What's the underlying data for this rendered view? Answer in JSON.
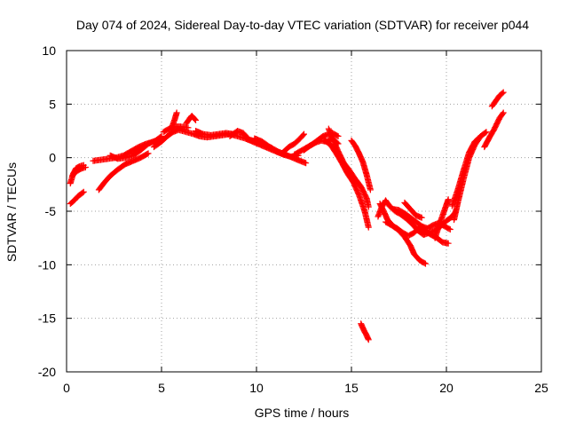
{
  "chart_data": {
    "type": "scatter",
    "title": "Day 074 of 2024, Sidereal Day-to-day VTEC variation (SDTVAR) for receiver p044",
    "xlabel": "GPS time / hours",
    "ylabel": "SDTVAR / TECUs",
    "xlim": [
      0,
      25
    ],
    "ylim": [
      -20,
      10
    ],
    "xticks": [
      0,
      5,
      10,
      15,
      20,
      25
    ],
    "xtick_labels": [
      "0",
      "5",
      "10",
      "15",
      "20",
      "25"
    ],
    "yticks": [
      -20,
      -15,
      -10,
      -5,
      0,
      5,
      10
    ],
    "ytick_labels": [
      "-20",
      "-15",
      "-10",
      "-5",
      "0",
      "5",
      "10"
    ],
    "grid": true,
    "marker": "+",
    "series": [
      {
        "name": "SDTVAR",
        "color": "#ff0000",
        "tracks": [
          [
            [
              0.2,
              -4.3
            ],
            [
              0.4,
              -4.0
            ],
            [
              0.6,
              -3.6
            ],
            [
              0.9,
              -3.2
            ]
          ],
          [
            [
              0.2,
              -2.4
            ],
            [
              0.35,
              -1.5
            ],
            [
              0.5,
              -1.0
            ],
            [
              0.7,
              -0.8
            ],
            [
              0.9,
              -0.7
            ]
          ],
          [
            [
              0.3,
              -1.7
            ],
            [
              0.5,
              -1.3
            ],
            [
              0.8,
              -1.0
            ],
            [
              1.0,
              -0.9
            ]
          ],
          [
            [
              1.7,
              -3.0
            ],
            [
              2.0,
              -2.3
            ],
            [
              2.3,
              -1.7
            ],
            [
              2.7,
              -1.1
            ],
            [
              3.1,
              -0.6
            ],
            [
              3.5,
              -0.3
            ],
            [
              3.9,
              0.0
            ],
            [
              4.3,
              0.4
            ]
          ],
          [
            [
              1.4,
              -0.3
            ],
            [
              1.8,
              -0.2
            ],
            [
              2.2,
              -0.1
            ],
            [
              2.6,
              0.0
            ],
            [
              3.0,
              0.2
            ],
            [
              3.4,
              0.6
            ],
            [
              3.8,
              1.0
            ],
            [
              4.2,
              1.3
            ],
            [
              4.6,
              1.5
            ],
            [
              5.0,
              1.8
            ]
          ],
          [
            [
              2.3,
              0.2
            ],
            [
              2.7,
              -0.1
            ],
            [
              3.1,
              0.0
            ],
            [
              3.5,
              0.2
            ],
            [
              3.9,
              0.7
            ],
            [
              4.3,
              1.3
            ],
            [
              4.7,
              1.6
            ],
            [
              5.0,
              2.0
            ]
          ],
          [
            [
              4.6,
              1.0
            ],
            [
              5.0,
              1.5
            ],
            [
              5.3,
              2.0
            ],
            [
              5.6,
              2.4
            ],
            [
              5.9,
              2.6
            ],
            [
              6.3,
              2.4
            ],
            [
              6.7,
              2.2
            ],
            [
              7.0,
              2.0
            ],
            [
              7.4,
              1.9
            ],
            [
              7.8,
              2.0
            ],
            [
              8.2,
              2.1
            ],
            [
              8.6,
              2.2
            ],
            [
              9.0,
              2.0
            ],
            [
              9.4,
              1.8
            ],
            [
              9.8,
              1.5
            ],
            [
              10.2,
              1.2
            ],
            [
              10.6,
              0.9
            ],
            [
              11.0,
              0.6
            ],
            [
              11.4,
              0.3
            ],
            [
              11.8,
              0.1
            ],
            [
              12.2,
              0.2
            ]
          ],
          [
            [
              5.1,
              2.4
            ],
            [
              5.4,
              2.7
            ],
            [
              5.7,
              2.9
            ],
            [
              6.0,
              2.9
            ],
            [
              6.4,
              2.8
            ]
          ],
          [
            [
              5.5,
              2.6
            ],
            [
              5.7,
              3.6
            ],
            [
              5.8,
              4.2
            ]
          ],
          [
            [
              6.3,
              3.2
            ],
            [
              6.5,
              3.7
            ],
            [
              6.6,
              3.9
            ],
            [
              6.8,
              3.5
            ]
          ],
          [
            [
              6.8,
              2.5
            ],
            [
              7.2,
              2.2
            ],
            [
              7.6,
              2.1
            ],
            [
              8.0,
              2.2
            ],
            [
              8.4,
              2.3
            ],
            [
              8.8,
              2.2
            ]
          ],
          [
            [
              8.6,
              2.0
            ],
            [
              9.0,
              2.5
            ],
            [
              9.3,
              2.3
            ],
            [
              9.6,
              1.7
            ],
            [
              10.0,
              1.5
            ],
            [
              10.4,
              1.2
            ],
            [
              10.8,
              0.9
            ]
          ],
          [
            [
              9.9,
              1.8
            ],
            [
              10.3,
              1.5
            ],
            [
              10.7,
              1.0
            ],
            [
              11.1,
              0.6
            ],
            [
              11.5,
              0.3
            ],
            [
              11.9,
              0.0
            ],
            [
              12.3,
              -0.3
            ],
            [
              12.6,
              -0.5
            ]
          ],
          [
            [
              11.4,
              0.5
            ],
            [
              11.7,
              1.0
            ],
            [
              12.0,
              1.3
            ],
            [
              12.3,
              1.8
            ],
            [
              12.5,
              2.2
            ]
          ],
          [
            [
              12.0,
              0.3
            ],
            [
              12.3,
              0.6
            ],
            [
              12.6,
              0.9
            ],
            [
              12.9,
              1.2
            ],
            [
              13.2,
              1.6
            ],
            [
              13.5,
              2.0
            ],
            [
              13.8,
              2.2
            ],
            [
              14.0,
              2.3
            ],
            [
              14.3,
              2.0
            ]
          ],
          [
            [
              12.5,
              0.7
            ],
            [
              12.8,
              1.1
            ],
            [
              13.1,
              1.4
            ],
            [
              13.4,
              1.6
            ],
            [
              13.7,
              1.5
            ],
            [
              14.0,
              1.8
            ],
            [
              14.3,
              1.3
            ]
          ],
          [
            [
              13.6,
              1.6
            ],
            [
              13.9,
              1.2
            ],
            [
              14.2,
              0.4
            ],
            [
              14.5,
              -0.5
            ],
            [
              14.8,
              -1.5
            ],
            [
              15.1,
              -2.3
            ],
            [
              15.4,
              -3.5
            ],
            [
              15.7,
              -5.0
            ],
            [
              15.9,
              -6.5
            ]
          ],
          [
            [
              13.8,
              2.7
            ],
            [
              14.0,
              1.8
            ],
            [
              14.3,
              0.6
            ],
            [
              14.6,
              -0.5
            ],
            [
              14.9,
              -1.2
            ],
            [
              15.2,
              -2.0
            ],
            [
              15.5,
              -2.7
            ],
            [
              15.8,
              -3.8
            ],
            [
              15.9,
              -4.6
            ]
          ],
          [
            [
              15.0,
              1.6
            ],
            [
              15.2,
              1.1
            ],
            [
              15.4,
              0.4
            ],
            [
              15.6,
              -0.4
            ],
            [
              15.8,
              -1.6
            ],
            [
              16.0,
              -3.0
            ]
          ],
          [
            [
              15.5,
              -15.5
            ],
            [
              15.65,
              -16.1
            ],
            [
              15.8,
              -16.6
            ],
            [
              15.9,
              -17.0
            ]
          ],
          [
            [
              16.4,
              -5.5
            ],
            [
              16.6,
              -4.6
            ],
            [
              16.8,
              -4.0
            ],
            [
              17.0,
              -4.5
            ],
            [
              17.3,
              -5.0
            ],
            [
              17.6,
              -5.3
            ],
            [
              17.9,
              -5.7
            ],
            [
              18.2,
              -6.2
            ],
            [
              18.5,
              -6.8
            ],
            [
              18.8,
              -7.2
            ],
            [
              19.1,
              -7.0
            ],
            [
              19.4,
              -6.8
            ],
            [
              19.7,
              -6.4
            ],
            [
              20.0,
              -5.9
            ],
            [
              20.3,
              -5.5
            ],
            [
              20.5,
              -5.0
            ]
          ],
          [
            [
              16.5,
              -4.3
            ],
            [
              16.7,
              -5.0
            ],
            [
              16.9,
              -5.8
            ],
            [
              17.2,
              -6.4
            ],
            [
              17.5,
              -6.8
            ],
            [
              17.8,
              -7.4
            ],
            [
              18.1,
              -8.2
            ],
            [
              18.3,
              -9.0
            ],
            [
              18.6,
              -9.6
            ],
            [
              18.9,
              -9.9
            ]
          ],
          [
            [
              16.8,
              -6.0
            ],
            [
              17.1,
              -6.3
            ],
            [
              17.4,
              -6.6
            ],
            [
              17.7,
              -7.0
            ],
            [
              18.0,
              -7.3
            ],
            [
              18.3,
              -7.0
            ],
            [
              18.6,
              -6.5
            ],
            [
              18.9,
              -6.9
            ],
            [
              19.2,
              -7.2
            ],
            [
              19.5,
              -7.5
            ],
            [
              19.8,
              -7.9
            ],
            [
              20.1,
              -8.0
            ]
          ],
          [
            [
              17.2,
              -4.8
            ],
            [
              17.5,
              -4.9
            ],
            [
              17.8,
              -5.2
            ],
            [
              18.1,
              -5.6
            ],
            [
              18.4,
              -6.0
            ],
            [
              18.7,
              -6.4
            ],
            [
              19.0,
              -6.6
            ],
            [
              19.3,
              -6.3
            ],
            [
              19.6,
              -6.1
            ],
            [
              19.9,
              -6.4
            ],
            [
              20.2,
              -6.7
            ]
          ],
          [
            [
              17.8,
              -4.2
            ],
            [
              18.1,
              -4.8
            ],
            [
              18.4,
              -5.4
            ],
            [
              18.7,
              -5.6
            ]
          ],
          [
            [
              19.4,
              -7.5
            ],
            [
              19.6,
              -6.4
            ],
            [
              19.8,
              -5.4
            ],
            [
              20.0,
              -4.4
            ],
            [
              20.1,
              -3.9
            ]
          ],
          [
            [
              20.4,
              -5.8
            ],
            [
              20.6,
              -4.2
            ],
            [
              20.9,
              -2.0
            ],
            [
              21.2,
              0.0
            ],
            [
              21.5,
              1.2
            ],
            [
              21.8,
              2.0
            ],
            [
              22.1,
              2.4
            ]
          ],
          [
            [
              20.3,
              -4.5
            ],
            [
              20.6,
              -3.0
            ],
            [
              20.9,
              -1.2
            ],
            [
              21.2,
              0.5
            ],
            [
              21.5,
              1.5
            ],
            [
              21.8,
              2.0
            ]
          ],
          [
            [
              22.0,
              1.0
            ],
            [
              22.3,
              2.0
            ],
            [
              22.5,
              2.6
            ],
            [
              22.8,
              3.7
            ],
            [
              23.0,
              4.2
            ]
          ],
          [
            [
              22.4,
              4.8
            ],
            [
              22.6,
              5.3
            ],
            [
              22.8,
              5.8
            ],
            [
              23.0,
              6.1
            ]
          ]
        ]
      }
    ]
  }
}
